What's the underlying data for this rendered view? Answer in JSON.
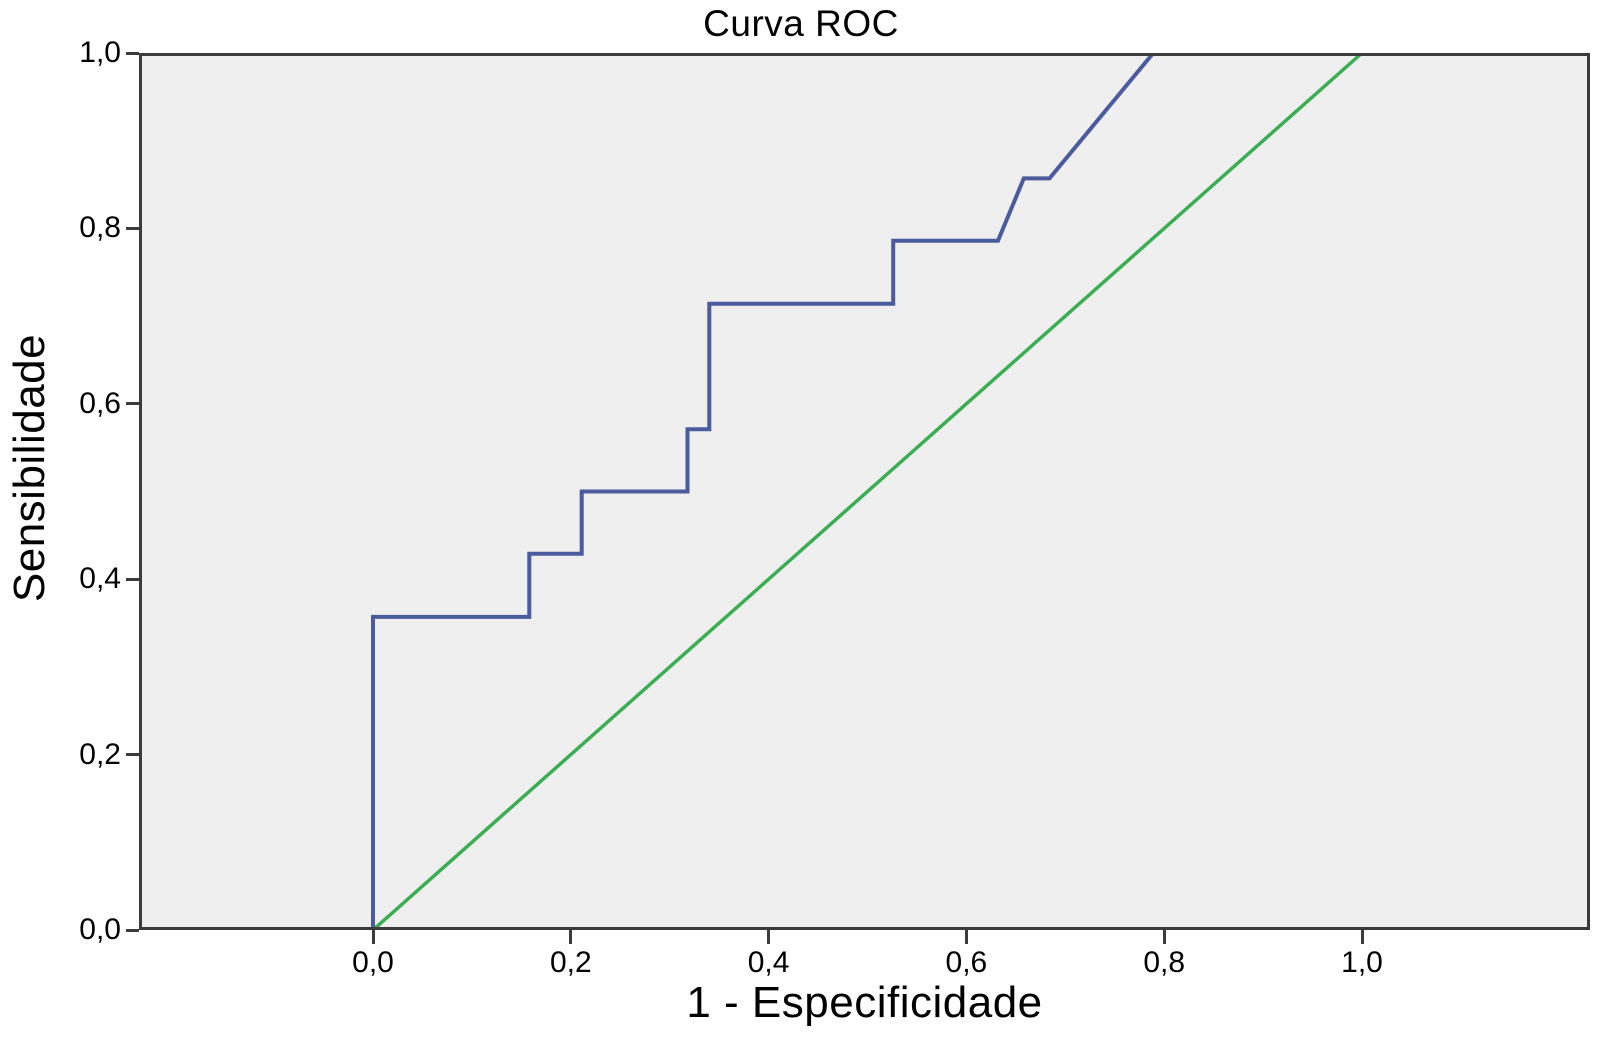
{
  "title": "Curva ROC",
  "x_axis": {
    "label": "1 - Especificidade",
    "ticks": [
      {
        "value": 0.0,
        "label": "0,0"
      },
      {
        "value": 0.2,
        "label": "0,2"
      },
      {
        "value": 0.4,
        "label": "0,4"
      },
      {
        "value": 0.6,
        "label": "0,6"
      },
      {
        "value": 0.8,
        "label": "0,8"
      },
      {
        "value": 1.0,
        "label": "1,0"
      }
    ]
  },
  "y_axis": {
    "label": "Sensibilidade",
    "ticks": [
      {
        "value": 0.0,
        "label": "0,0"
      },
      {
        "value": 0.2,
        "label": "0,2"
      },
      {
        "value": 0.4,
        "label": "0,4"
      },
      {
        "value": 0.6,
        "label": "0,6"
      },
      {
        "value": 0.8,
        "label": "0,8"
      },
      {
        "value": 1.0,
        "label": "1,0"
      }
    ]
  },
  "colors": {
    "roc_curve": "#4a5b9e",
    "reference_line": "#3bad53",
    "plot_background": "#f0efef",
    "frame": "#3b3b3b",
    "page_background": "#ffffff",
    "text": "#000000"
  },
  "chart_data": {
    "type": "line",
    "title": "Curva ROC",
    "xlabel": "1 - Especificidade",
    "ylabel": "Sensibilidade",
    "xlim": [
      -0.237,
      1.23
    ],
    "ylim": [
      0.0,
      1.0
    ],
    "grid": false,
    "legend": "none",
    "series": [
      {
        "name": "ROC curve",
        "color": "#4a5b9e",
        "stroke_width": 4,
        "points": [
          [
            0.0,
            0.0
          ],
          [
            0.0,
            0.357
          ],
          [
            0.158,
            0.357
          ],
          [
            0.158,
            0.429
          ],
          [
            0.211,
            0.429
          ],
          [
            0.211,
            0.5
          ],
          [
            0.318,
            0.5
          ],
          [
            0.318,
            0.571
          ],
          [
            0.34,
            0.571
          ],
          [
            0.34,
            0.714
          ],
          [
            0.526,
            0.714
          ],
          [
            0.526,
            0.786
          ],
          [
            0.632,
            0.786
          ],
          [
            0.658,
            0.857
          ],
          [
            0.684,
            0.857
          ],
          [
            0.789,
            1.0
          ],
          [
            1.0,
            1.0
          ]
        ]
      },
      {
        "name": "Reference diagonal",
        "color": "#3bad53",
        "stroke_width": 3.5,
        "points": [
          [
            0.0,
            0.0
          ],
          [
            1.0,
            1.0
          ]
        ]
      }
    ]
  }
}
